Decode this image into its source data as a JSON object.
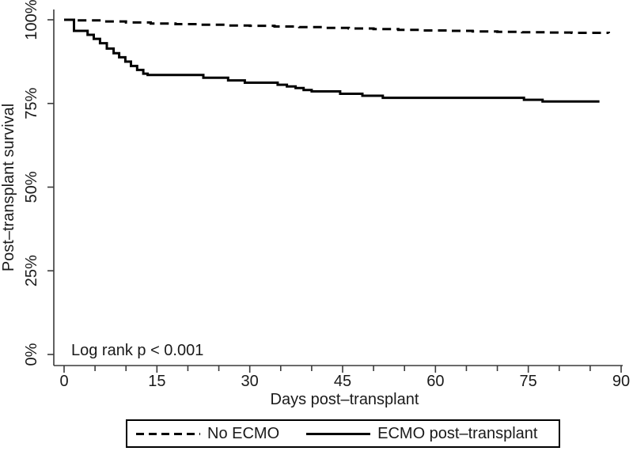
{
  "chart_data": {
    "type": "line",
    "subtype": "kaplan-meier-step",
    "title": "",
    "xlabel": "Days post–transplant",
    "ylabel": "Post–transplant survival",
    "annotation": "Log rank p < 0.001",
    "xlim": [
      0,
      90
    ],
    "ylim": [
      0,
      100
    ],
    "x_major_ticks": [
      0,
      15,
      30,
      45,
      60,
      75,
      90
    ],
    "x_minor_tick_interval": 5,
    "y_ticks": [
      {
        "value": 0,
        "label": "0%"
      },
      {
        "value": 25,
        "label": "25%"
      },
      {
        "value": 50,
        "label": "50%"
      },
      {
        "value": 75,
        "label": "75%"
      },
      {
        "value": 100,
        "label": "100%"
      }
    ],
    "grid": false,
    "legend_position": "bottom",
    "line_color": "#000000",
    "axis_color": "#3a3a3a",
    "text_color": "#1a1a1a",
    "series": [
      {
        "name": "No ECMO",
        "style": "dashed",
        "points": [
          [
            0,
            100
          ],
          [
            2,
            99.8
          ],
          [
            6,
            99.5
          ],
          [
            10,
            99.2
          ],
          [
            14,
            98.9
          ],
          [
            18,
            98.7
          ],
          [
            22,
            98.5
          ],
          [
            26,
            98.3
          ],
          [
            30,
            98.2
          ],
          [
            34,
            98.0
          ],
          [
            38,
            97.8
          ],
          [
            42,
            97.6
          ],
          [
            46,
            97.4
          ],
          [
            50,
            97.2
          ],
          [
            54,
            97.0
          ],
          [
            58,
            96.8
          ],
          [
            62,
            96.7
          ],
          [
            66,
            96.5
          ],
          [
            70,
            96.4
          ],
          [
            74,
            96.3
          ],
          [
            78,
            96.2
          ],
          [
            82,
            96.1
          ],
          [
            88,
            96.0
          ]
        ]
      },
      {
        "name": "ECMO post–transplant",
        "style": "solid",
        "points": [
          [
            0,
            100
          ],
          [
            1.6,
            96.7
          ],
          [
            3.8,
            95.5
          ],
          [
            4.8,
            94.3
          ],
          [
            5.8,
            93.0
          ],
          [
            6.9,
            91.4
          ],
          [
            8.0,
            90.0
          ],
          [
            8.9,
            88.8
          ],
          [
            9.9,
            87.5
          ],
          [
            10.8,
            86.2
          ],
          [
            11.8,
            85.0
          ],
          [
            12.8,
            83.9
          ],
          [
            13.5,
            83.5
          ],
          [
            22.5,
            82.7
          ],
          [
            26.5,
            81.9
          ],
          [
            29.2,
            81.2
          ],
          [
            34.5,
            80.6
          ],
          [
            36.0,
            80.1
          ],
          [
            37.4,
            79.6
          ],
          [
            38.7,
            79.0
          ],
          [
            40.0,
            78.6
          ],
          [
            44.6,
            77.9
          ],
          [
            48.2,
            77.3
          ],
          [
            51.5,
            76.7
          ],
          [
            74.3,
            76.1
          ],
          [
            77.3,
            75.6
          ],
          [
            86.5,
            75.6
          ]
        ]
      }
    ]
  }
}
